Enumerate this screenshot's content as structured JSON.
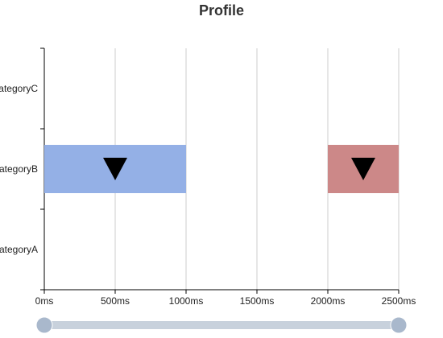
{
  "chart_data": {
    "type": "custom",
    "title": "Profile",
    "y_categories": [
      "categoryA",
      "categoryB",
      "categoryC"
    ],
    "y_tick_labels": [
      "ategoryA",
      "ategoryB",
      "ategoryC"
    ],
    "x_ticks": [
      0,
      500,
      1000,
      1500,
      2000,
      2500
    ],
    "x_tick_labels": [
      "0ms",
      "500ms",
      "1000ms",
      "1500ms",
      "2000ms",
      "2500ms"
    ],
    "xlim": [
      0,
      2500
    ],
    "x_unit": "ms",
    "grid": "vertical lines at x ticks",
    "items": [
      {
        "category": "categoryB",
        "start": 0,
        "end": 1000,
        "marker_x": 500,
        "color": "#94b0e6"
      },
      {
        "category": "categoryB",
        "start": 2000,
        "end": 2500,
        "marker_x": 2250,
        "color": "#cc8888"
      }
    ],
    "marker_shape": "downward triangle",
    "dataZoom": {
      "start_percent": 0,
      "end_percent": 100
    },
    "colors": {
      "axis": "#000000",
      "grid": "#cccccc",
      "slider_track": "#c8d1dc",
      "slider_handle": "#a9b8cc"
    }
  }
}
